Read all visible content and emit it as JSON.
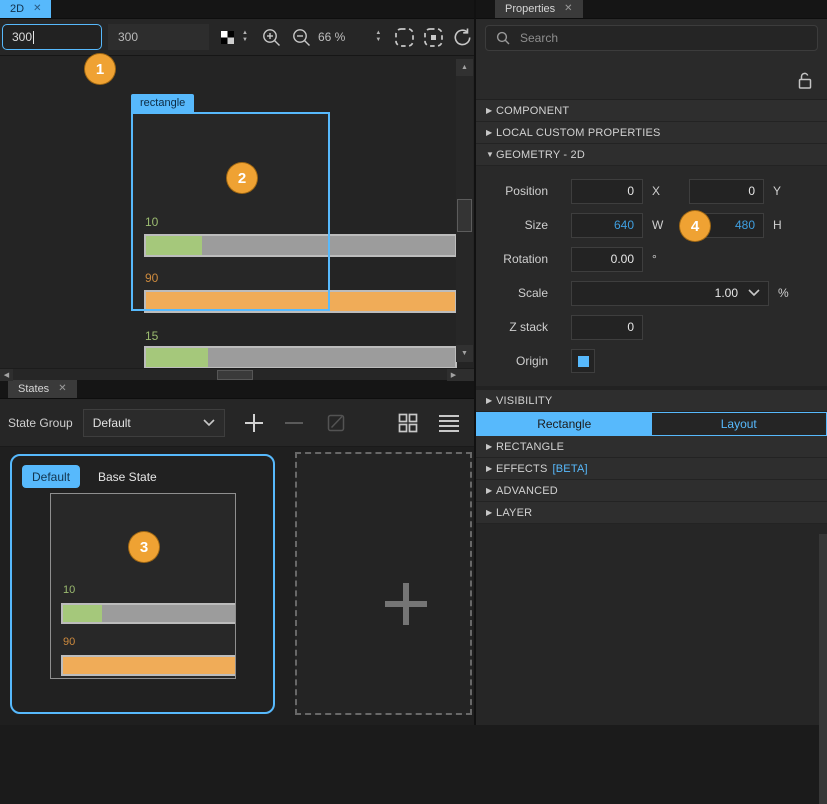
{
  "colors": {
    "accent_blue": "#57b9fc",
    "annotation_orange": "#efa233",
    "bar_green": "#a5c87b",
    "bar_orange": "#f0ac58",
    "bar_track_gray": "#9c9c9c",
    "changed_value_blue": "#3f9fe0"
  },
  "icons": {
    "close": "✕",
    "tri_right": "▶",
    "tri_down": "▼",
    "tri_up_small": "▲",
    "tri_down_small": "▼",
    "tri_left_small": "◀",
    "tri_right_small": "▶"
  },
  "editor": {
    "tab_label": "2D",
    "toolbar": {
      "x_value": "300",
      "y_value": "300",
      "zoom_value": "66 %"
    },
    "selection_label": "rectangle",
    "bars": [
      {
        "label": "10",
        "fill_pct": 18,
        "color": "green"
      },
      {
        "label": "90",
        "fill_pct": 100,
        "color": "orange"
      },
      {
        "label": "15",
        "fill_pct": 20,
        "color": "green"
      }
    ]
  },
  "annotations": {
    "b1": "1",
    "b2": "2",
    "b3": "3",
    "b4": "4"
  },
  "properties": {
    "tab_label": "Properties",
    "search_placeholder": "Search",
    "section_component": "COMPONENT",
    "section_local_custom": "LOCAL CUSTOM PROPERTIES",
    "section_geometry": "GEOMETRY - 2D",
    "section_visibility": "VISIBILITY",
    "section_rectangle": "RECTANGLE",
    "section_effects": "EFFECTS",
    "section_effects_beta": "[BETA]",
    "section_advanced": "ADVANCED",
    "section_layer": "LAYER",
    "geometry": {
      "position_label": "Position",
      "position_x": "0",
      "unit_x": "X",
      "position_y": "0",
      "unit_y": "Y",
      "size_label": "Size",
      "size_w": "640",
      "unit_w": "W",
      "size_h": "480",
      "unit_h": "H",
      "rotation_label": "Rotation",
      "rotation_value": "0.00",
      "rotation_unit": "°",
      "scale_label": "Scale",
      "scale_value": "1.00",
      "scale_unit": "%",
      "zstack_label": "Z stack",
      "zstack_value": "0",
      "origin_label": "Origin"
    },
    "subtab_rectangle": "Rectangle",
    "subtab_layout": "Layout"
  },
  "states": {
    "tab_label": "States",
    "group_label": "State Group",
    "group_value": "Default",
    "default_badge": "Default",
    "base_state_label": "Base State",
    "thumb_bars": [
      {
        "label": "10",
        "fill_pct": 20,
        "color": "green"
      },
      {
        "label": "90",
        "fill_pct": 100,
        "color": "orange"
      }
    ]
  }
}
